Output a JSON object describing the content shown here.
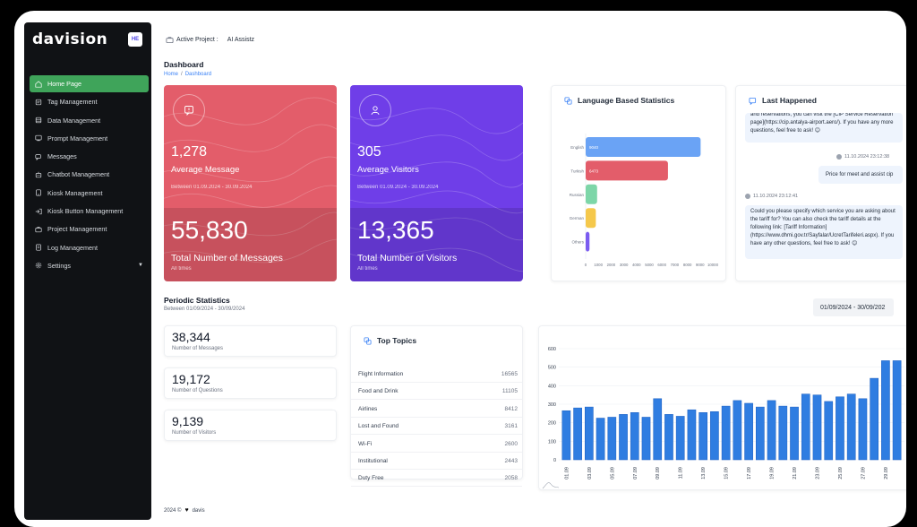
{
  "sidebar": {
    "logo": "davision",
    "avatar_initials": "HE",
    "items": [
      {
        "label": "Home Page",
        "icon": "home-icon",
        "active": true
      },
      {
        "label": "Tag Management",
        "icon": "tag-icon"
      },
      {
        "label": "Data Management",
        "icon": "data-icon"
      },
      {
        "label": "Prompt Management",
        "icon": "prompt-icon"
      },
      {
        "label": "Messages",
        "icon": "messages-icon"
      },
      {
        "label": "Chatbot Management",
        "icon": "chatbot-icon"
      },
      {
        "label": "Kiosk Management",
        "icon": "kiosk-icon"
      },
      {
        "label": "Kiosk Button Management",
        "icon": "kiosk-button-icon"
      },
      {
        "label": "Project Management",
        "icon": "project-icon"
      },
      {
        "label": "Log Management",
        "icon": "log-icon"
      },
      {
        "label": "Settings",
        "icon": "settings-icon",
        "has_chevron": true
      }
    ]
  },
  "topbar": {
    "active_project_label": "Active Project :",
    "active_project_value": "AI Assistz"
  },
  "page": {
    "title": "Dashboard",
    "breadcrumb_home": "Home",
    "breadcrumb_sep": "/",
    "breadcrumb_current": "Dashboard"
  },
  "stat_cards": {
    "messages": {
      "value": "1,278",
      "label": "Average Message",
      "range": "Between 01.09.2024 - 30.09.2024",
      "total": "55,830",
      "total_label": "Total Number of Messages",
      "total_sub": "All times"
    },
    "visitors": {
      "value": "305",
      "label": "Average Visitors",
      "range": "Between 01.09.2024 - 30.09.2024",
      "total": "13,365",
      "total_label": "Total Number of Visitors",
      "total_sub": "All times"
    }
  },
  "language_panel": {
    "title": "Language Based Statistics"
  },
  "last_happened": {
    "title": "Last Happened",
    "msg1": "and reservations, you can visit the [CIP Service Reservation page](https://cip.antalya-airport.aero/). If you have any more questions, feel free to ask! 😊",
    "time2": "11.10.2024 23:12:38",
    "msg2": "Price for meet and assist cip",
    "time3": "11.10.2024 23:12:41",
    "msg3": "Could you please specify which service you are asking about the tariff for? You can also check the tariff details at the following link: [Tariff Information](https://www.dhmi.gov.tr/Sayfalar/UcretTarifeleri.aspx). If you have any other questions, feel free to ask! 😊"
  },
  "periodic": {
    "title": "Periodic Statistics",
    "subtitle": "Between 01/09/2024 - 30/09/2024",
    "date_range": "01/09/2024 - 30/09/202",
    "cards": [
      {
        "value": "38,344",
        "caption": "Number of Messages"
      },
      {
        "value": "19,172",
        "caption": "Number of Questions"
      },
      {
        "value": "9,139",
        "caption": "Number of Visitors"
      }
    ]
  },
  "top_topics": {
    "title": "Top Topics",
    "rows": [
      {
        "name": "Flight Information",
        "count": "16565"
      },
      {
        "name": "Food and Drink",
        "count": "11105"
      },
      {
        "name": "Airlines",
        "count": "8412"
      },
      {
        "name": "Lost and Found",
        "count": "3161"
      },
      {
        "name": "Wi-Fi",
        "count": "2600"
      },
      {
        "name": "Institutional",
        "count": "2443"
      },
      {
        "name": "Duty Free",
        "count": "2058"
      }
    ]
  },
  "footer": {
    "year": "2024 ©",
    "heart": "♥",
    "brand": "davis"
  },
  "colors": {
    "accent_green": "#3fa45a",
    "card_red": "#e35d6a",
    "card_purple": "#6f3ee8",
    "bar_blue": "#2f7de1"
  },
  "chart_data": [
    {
      "type": "bar",
      "orientation": "horizontal",
      "categories": [
        "English",
        "Turkish",
        "Russian",
        "German",
        "Others"
      ],
      "values": [
        9040,
        6473,
        900,
        800,
        300
      ],
      "data_labels": [
        "9040",
        "6473",
        "",
        "",
        ""
      ],
      "bar_colors": [
        "#6aa3f5",
        "#e35d6a",
        "#7dd6a8",
        "#f5c84b",
        "#7b5cf0"
      ],
      "x_ticks": [
        0,
        1000,
        2000,
        3000,
        4000,
        5000,
        6000,
        7000,
        8000,
        9000,
        10000
      ],
      "xlim": [
        0,
        10000
      ]
    },
    {
      "type": "bar",
      "categories": [
        "01.09",
        "02.09",
        "03.09",
        "04.09",
        "05.09",
        "06.09",
        "07.09",
        "08.09",
        "09.09",
        "10.09",
        "11.09",
        "12.09",
        "13.09",
        "14.09",
        "15.09",
        "16.09",
        "17.09",
        "18.09",
        "19.09",
        "20.09",
        "21.09",
        "22.09",
        "23.09",
        "24.09",
        "25.09",
        "26.09",
        "27.09",
        "28.09",
        "29.09",
        "30.09"
      ],
      "tick_labels": [
        "01.09",
        "03.09",
        "05.09",
        "07.09",
        "09.09",
        "11.09",
        "13.09",
        "15.09",
        "17.09",
        "19.09",
        "21.09",
        "23.09",
        "25.09",
        "27.09",
        "29.09"
      ],
      "values": [
        265,
        280,
        285,
        225,
        230,
        245,
        255,
        230,
        330,
        245,
        235,
        270,
        255,
        260,
        290,
        320,
        305,
        285,
        320,
        290,
        285,
        355,
        350,
        315,
        340,
        355,
        330,
        440,
        535,
        535
      ],
      "y_ticks": [
        0,
        100,
        200,
        300,
        400,
        500,
        600
      ],
      "ylim": [
        0,
        600
      ]
    }
  ]
}
